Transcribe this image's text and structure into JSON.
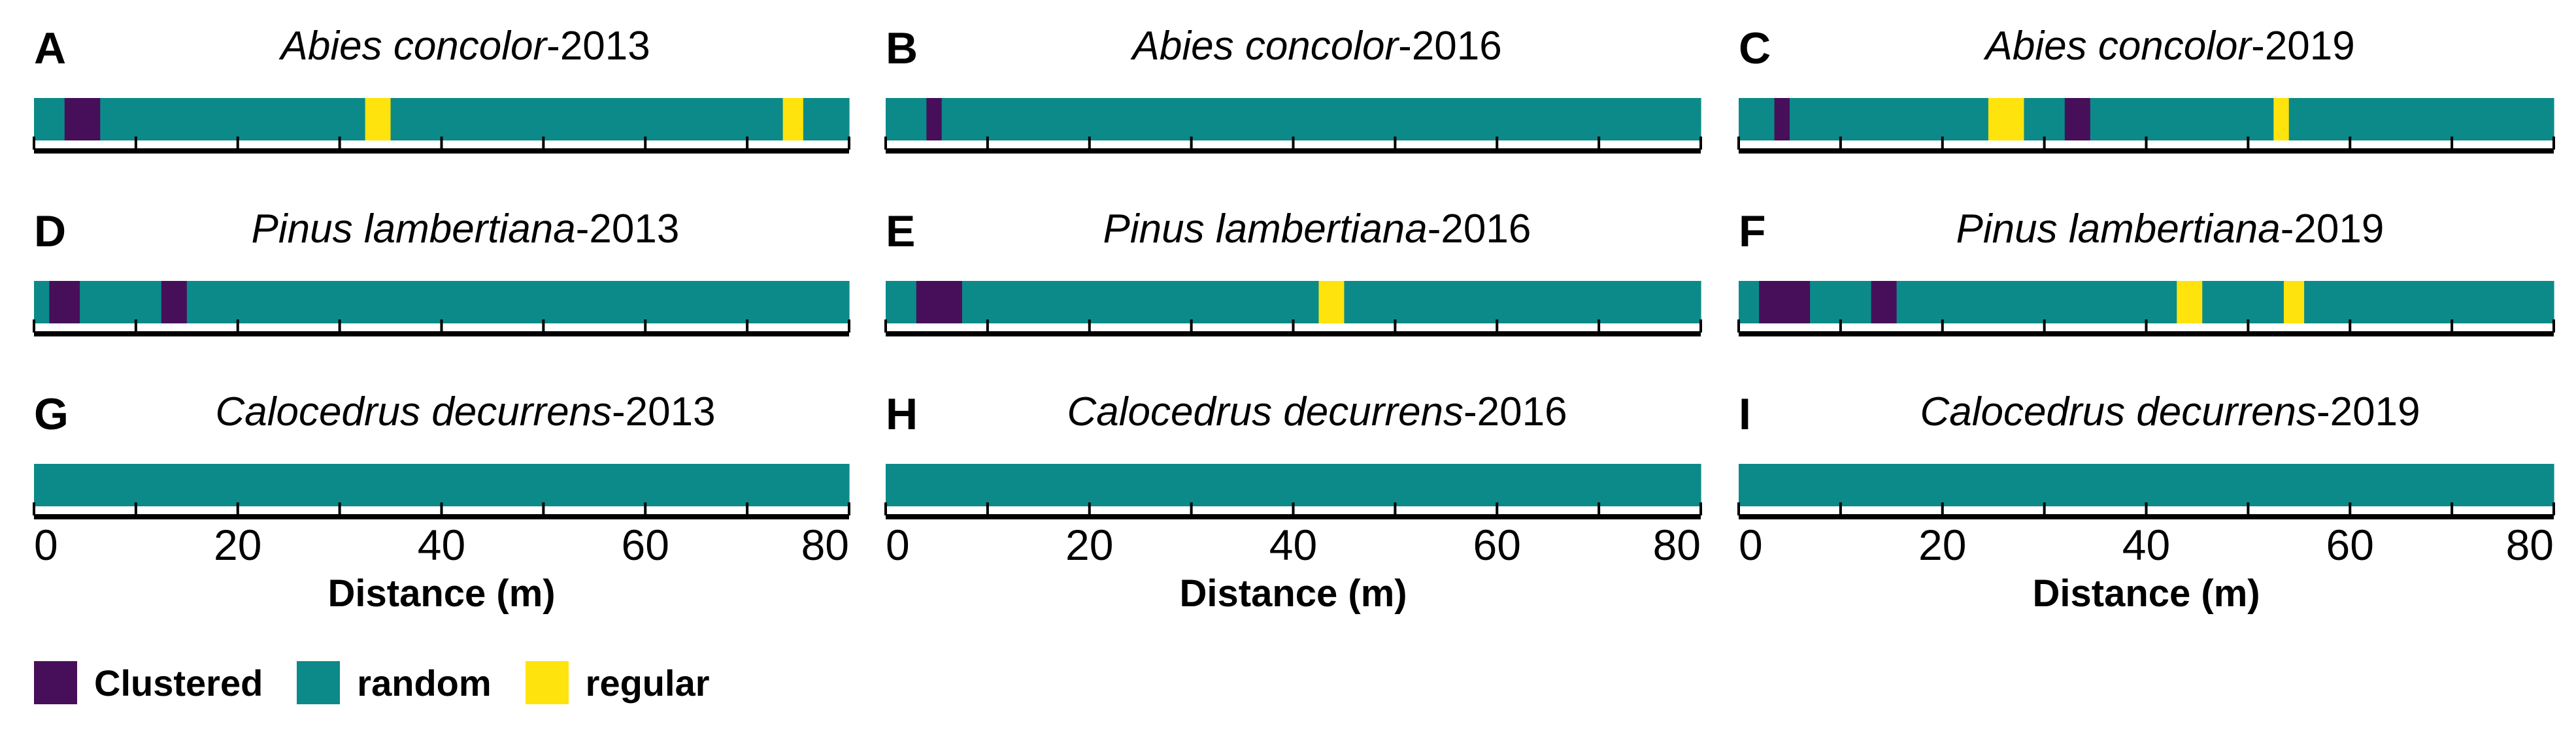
{
  "colors": {
    "clustered": "#470f5a",
    "random": "#0c8a89",
    "regular": "#ffe30c",
    "axis": "#000000"
  },
  "legend": {
    "items": [
      {
        "key": "clustered",
        "label": "Clustered"
      },
      {
        "key": "random",
        "label": "random"
      },
      {
        "key": "regular",
        "label": "regular"
      }
    ]
  },
  "chart_data": [
    {
      "panel": "A",
      "title_species": "Abies concolor",
      "title_suffix": "-2013",
      "type": "bar",
      "xlim": [
        0,
        80
      ],
      "x_ticks": [],
      "xlabel": "",
      "segments": [
        {
          "start": 0,
          "end": 3,
          "pattern": "random"
        },
        {
          "start": 3,
          "end": 6.5,
          "pattern": "clustered"
        },
        {
          "start": 6.5,
          "end": 32.5,
          "pattern": "random"
        },
        {
          "start": 32.5,
          "end": 35,
          "pattern": "regular"
        },
        {
          "start": 35,
          "end": 73.5,
          "pattern": "random"
        },
        {
          "start": 73.5,
          "end": 75.5,
          "pattern": "regular"
        },
        {
          "start": 75.5,
          "end": 80,
          "pattern": "random"
        }
      ]
    },
    {
      "panel": "B",
      "title_species": "Abies concolor",
      "title_suffix": "-2016",
      "type": "bar",
      "xlim": [
        0,
        80
      ],
      "x_ticks": [],
      "xlabel": "",
      "segments": [
        {
          "start": 0,
          "end": 4,
          "pattern": "random"
        },
        {
          "start": 4,
          "end": 5.5,
          "pattern": "clustered"
        },
        {
          "start": 5.5,
          "end": 80,
          "pattern": "random"
        }
      ]
    },
    {
      "panel": "C",
      "title_species": "Abies concolor",
      "title_suffix": "-2019",
      "type": "bar",
      "xlim": [
        0,
        80
      ],
      "x_ticks": [],
      "xlabel": "",
      "segments": [
        {
          "start": 0,
          "end": 3.5,
          "pattern": "random"
        },
        {
          "start": 3.5,
          "end": 5,
          "pattern": "clustered"
        },
        {
          "start": 5,
          "end": 24.5,
          "pattern": "random"
        },
        {
          "start": 24.5,
          "end": 28,
          "pattern": "regular"
        },
        {
          "start": 28,
          "end": 32,
          "pattern": "random"
        },
        {
          "start": 32,
          "end": 34.5,
          "pattern": "clustered"
        },
        {
          "start": 34.5,
          "end": 52.5,
          "pattern": "random"
        },
        {
          "start": 52.5,
          "end": 54,
          "pattern": "regular"
        },
        {
          "start": 54,
          "end": 80,
          "pattern": "random"
        }
      ]
    },
    {
      "panel": "D",
      "title_species": "Pinus lambertiana",
      "title_suffix": "-2013",
      "type": "bar",
      "xlim": [
        0,
        80
      ],
      "x_ticks": [],
      "xlabel": "",
      "segments": [
        {
          "start": 0,
          "end": 1.5,
          "pattern": "random"
        },
        {
          "start": 1.5,
          "end": 4.5,
          "pattern": "clustered"
        },
        {
          "start": 4.5,
          "end": 12.5,
          "pattern": "random"
        },
        {
          "start": 12.5,
          "end": 15,
          "pattern": "clustered"
        },
        {
          "start": 15,
          "end": 80,
          "pattern": "random"
        }
      ]
    },
    {
      "panel": "E",
      "title_species": "Pinus lambertiana",
      "title_suffix": "-2016",
      "type": "bar",
      "xlim": [
        0,
        80
      ],
      "x_ticks": [],
      "xlabel": "",
      "segments": [
        {
          "start": 0,
          "end": 3,
          "pattern": "random"
        },
        {
          "start": 3,
          "end": 7.5,
          "pattern": "clustered"
        },
        {
          "start": 7.5,
          "end": 42.5,
          "pattern": "random"
        },
        {
          "start": 42.5,
          "end": 45,
          "pattern": "regular"
        },
        {
          "start": 45,
          "end": 80,
          "pattern": "random"
        }
      ]
    },
    {
      "panel": "F",
      "title_species": "Pinus lambertiana",
      "title_suffix": "-2019",
      "type": "bar",
      "xlim": [
        0,
        80
      ],
      "x_ticks": [],
      "xlabel": "",
      "segments": [
        {
          "start": 0,
          "end": 2,
          "pattern": "random"
        },
        {
          "start": 2,
          "end": 7,
          "pattern": "clustered"
        },
        {
          "start": 7,
          "end": 13,
          "pattern": "random"
        },
        {
          "start": 13,
          "end": 15.5,
          "pattern": "clustered"
        },
        {
          "start": 15.5,
          "end": 43,
          "pattern": "random"
        },
        {
          "start": 43,
          "end": 45.5,
          "pattern": "regular"
        },
        {
          "start": 45.5,
          "end": 53.5,
          "pattern": "random"
        },
        {
          "start": 53.5,
          "end": 55.5,
          "pattern": "regular"
        },
        {
          "start": 55.5,
          "end": 80,
          "pattern": "random"
        }
      ]
    },
    {
      "panel": "G",
      "title_species": "Calocedrus decurrens",
      "title_suffix": "-2013",
      "type": "bar",
      "xlim": [
        0,
        80
      ],
      "x_ticks": [
        0,
        20,
        40,
        60,
        80
      ],
      "xlabel": "Distance (m)",
      "segments": [
        {
          "start": 0,
          "end": 80,
          "pattern": "random"
        }
      ]
    },
    {
      "panel": "H",
      "title_species": "Calocedrus decurrens",
      "title_suffix": "-2016",
      "type": "bar",
      "xlim": [
        0,
        80
      ],
      "x_ticks": [
        0,
        20,
        40,
        60,
        80
      ],
      "xlabel": "Distance (m)",
      "segments": [
        {
          "start": 0,
          "end": 80,
          "pattern": "random"
        }
      ]
    },
    {
      "panel": "I",
      "title_species": "Calocedrus decurrens",
      "title_suffix": "-2019",
      "type": "bar",
      "xlim": [
        0,
        80
      ],
      "x_ticks": [
        0,
        20,
        40,
        60,
        80
      ],
      "xlabel": "Distance (m)",
      "segments": [
        {
          "start": 0,
          "end": 80,
          "pattern": "random"
        }
      ]
    }
  ]
}
